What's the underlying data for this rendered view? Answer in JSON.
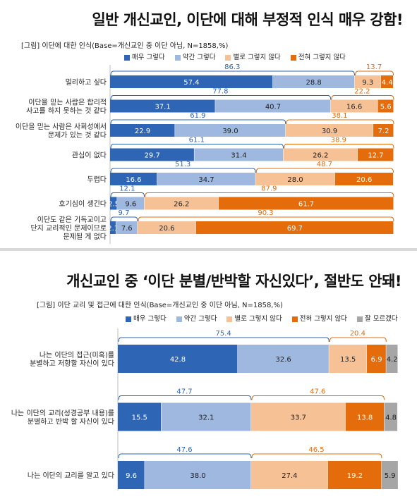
{
  "colors": {
    "very_positive": "#2e65b5",
    "somewhat_positive": "#9eb8e0",
    "not_really": "#f7c196",
    "not_at_all": "#e46c0a",
    "dont_know": "#a6a6a6",
    "positive_bracket": "#2e65b5",
    "negative_bracket": "#e46c0a"
  },
  "chart_data": [
    {
      "type": "bar",
      "orientation": "horizontal",
      "stacked": true,
      "title": "일반 개신교인, 이단에 대해 부정적 인식 매우 강함!",
      "subtitle": "[그림] 이단에 대한 인식(Base=개신교인 중 이단 아님, N=1858,%)",
      "legend_position": "top",
      "series": [
        {
          "name": "매우 그렇다",
          "values": [
            57.4,
            37.1,
            22.9,
            29.7,
            16.6,
            2.5,
            2.1
          ]
        },
        {
          "name": "약간 그렇다",
          "values": [
            28.8,
            40.7,
            39.0,
            31.4,
            34.7,
            9.6,
            7.6
          ]
        },
        {
          "name": "별로 그렇지 않다",
          "values": [
            9.3,
            16.6,
            30.9,
            26.2,
            28.0,
            26.2,
            20.6
          ]
        },
        {
          "name": "전혀 그렇지 않다",
          "values": [
            4.4,
            5.6,
            7.2,
            12.7,
            20.6,
            61.7,
            69.7
          ]
        }
      ],
      "categories": [
        [
          "멀리하고 싶다"
        ],
        [
          "이단을 믿는 사람은 합리적",
          "사고를 하지 못하는 것 같다"
        ],
        [
          "이단을 믿는 사람은 사회성에서",
          "문제가 있는 것 같다"
        ],
        [
          "관심이 없다"
        ],
        [
          "두렵다"
        ],
        [
          "호기심이 생긴다"
        ],
        [
          "이단도 같은 기독교이고",
          "단지 교리적인 문제이므로",
          "문제될 게 없다"
        ]
      ],
      "positive_totals": [
        "86.3",
        "77.8",
        "61.9",
        "61.1",
        "51.3",
        "12.1",
        "9.7"
      ],
      "negative_totals": [
        "13.7",
        "22.2",
        "38.1",
        "38.9",
        "48.7",
        "87.9",
        "90.3"
      ],
      "xlim": [
        0,
        100
      ]
    },
    {
      "type": "bar",
      "orientation": "horizontal",
      "stacked": true,
      "title": "개신교인 중 ‘이단 분별/반박할 자신있다’, 절반도 안돼!",
      "subtitle": "[그림] 이단 교리 및 접근에 대한 인식(Base=개신교인 중 이단 아님, N=1858,%)",
      "legend_position": "top",
      "series": [
        {
          "name": "매우 그렇다",
          "values": [
            42.8,
            15.5,
            9.6
          ]
        },
        {
          "name": "약간 그렇다",
          "values": [
            32.6,
            32.1,
            38.0
          ]
        },
        {
          "name": "별로 그렇지 않다",
          "values": [
            13.5,
            33.7,
            27.4
          ]
        },
        {
          "name": "전혀 그렇지 않다",
          "values": [
            6.9,
            13.8,
            19.2
          ]
        },
        {
          "name": "잘 모르겠다",
          "values": [
            4.2,
            4.8,
            5.9
          ]
        }
      ],
      "categories": [
        [
          "나는 이단의 접근(미혹)를",
          "분별하고 저항할 자신이 있다"
        ],
        [
          "나는 이단의 교리(성경공부 내용)를",
          "분별하고 반박 할 자신이 있다"
        ],
        [
          "나는 이단의 교리를 알고 있다"
        ]
      ],
      "positive_totals": [
        "75.4",
        "47.7",
        "47.6"
      ],
      "negative_totals": [
        "20.4",
        "47.6",
        "46.5"
      ],
      "xlim": [
        0,
        100
      ]
    }
  ]
}
